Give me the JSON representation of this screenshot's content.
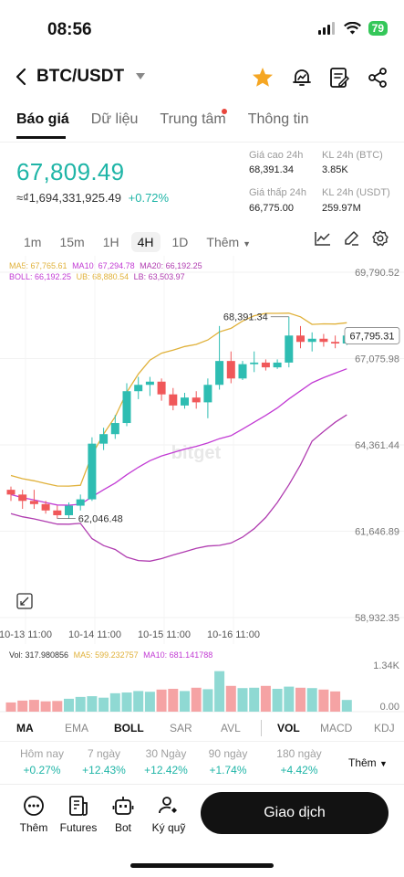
{
  "status": {
    "time": "08:56",
    "battery": "79"
  },
  "header": {
    "title": "BTC/USDT"
  },
  "tabs": [
    {
      "label": "Báo giá",
      "active": true
    },
    {
      "label": "Dữ liệu"
    },
    {
      "label": "Trung tâm"
    },
    {
      "label": "Thông tin"
    }
  ],
  "ticker": {
    "price": "67,809.49",
    "fiat": "≈₫1,694,331,925.49",
    "change": "+0.72%",
    "stats": [
      {
        "label": "Giá cao 24h",
        "value": "68,391.34"
      },
      {
        "label": "KL 24h (BTC)",
        "value": "3.85K"
      },
      {
        "label": "Giá thấp 24h",
        "value": "66,775.00"
      },
      {
        "label": "KL 24h (USDT)",
        "value": "259.97M"
      }
    ]
  },
  "intervals": [
    "1m",
    "15m",
    "1H",
    "4H",
    "1D",
    "Thêm"
  ],
  "chart_legend": {
    "ma": [
      {
        "text": "MA5: 67,765.61",
        "color": "#e0b13a"
      },
      {
        "text": "MA10: 67,294.78",
        "color": "#c23bd4"
      },
      {
        "text": "MA20: 66,192.25",
        "color": "#b03cb0"
      }
    ],
    "boll": [
      {
        "text": "BOLL: 66,192.25",
        "color": "#c23bd4"
      },
      {
        "text": "UB: 68,880.54",
        "color": "#e0b13a"
      },
      {
        "text": "LB: 63,503.97",
        "color": "#b03cb0"
      }
    ]
  },
  "chart_data": {
    "type": "candlestick",
    "y_ticks": [
      "69,790.52",
      "67,075.98",
      "64,361.44",
      "61,646.89",
      "58,932.35"
    ],
    "x_labels": [
      "10-13 11:00",
      "10-14 11:00",
      "10-15 11:00",
      "10-16 11:00"
    ],
    "last_price": "67,795.31",
    "high_marker": "68,391.34",
    "low_marker": "62,046.48",
    "candles": [
      {
        "o": 62950,
        "h": 63050,
        "l": 62600,
        "c": 62800
      },
      {
        "o": 62800,
        "h": 62950,
        "l": 62350,
        "c": 62600
      },
      {
        "o": 62600,
        "h": 62950,
        "l": 62350,
        "c": 62500
      },
      {
        "o": 62500,
        "h": 62600,
        "l": 62200,
        "c": 62300
      },
      {
        "o": 62300,
        "h": 62450,
        "l": 62046,
        "c": 62150
      },
      {
        "o": 62150,
        "h": 62550,
        "l": 62050,
        "c": 62450
      },
      {
        "o": 62450,
        "h": 62800,
        "l": 62300,
        "c": 62650
      },
      {
        "o": 62650,
        "h": 64600,
        "l": 62600,
        "c": 64400
      },
      {
        "o": 64400,
        "h": 64900,
        "l": 64200,
        "c": 64700
      },
      {
        "o": 64700,
        "h": 65300,
        "l": 64550,
        "c": 65050
      },
      {
        "o": 65050,
        "h": 66300,
        "l": 64950,
        "c": 66050
      },
      {
        "o": 66050,
        "h": 66500,
        "l": 65800,
        "c": 66250
      },
      {
        "o": 66250,
        "h": 66500,
        "l": 65900,
        "c": 66350
      },
      {
        "o": 66350,
        "h": 66450,
        "l": 65750,
        "c": 65950
      },
      {
        "o": 65950,
        "h": 66150,
        "l": 65450,
        "c": 65600
      },
      {
        "o": 65600,
        "h": 66000,
        "l": 65500,
        "c": 65850
      },
      {
        "o": 65850,
        "h": 66050,
        "l": 65500,
        "c": 65700
      },
      {
        "o": 65700,
        "h": 66450,
        "l": 65200,
        "c": 66250
      },
      {
        "o": 66250,
        "h": 68100,
        "l": 66100,
        "c": 67000
      },
      {
        "o": 67000,
        "h": 67300,
        "l": 66300,
        "c": 66450
      },
      {
        "o": 66450,
        "h": 67000,
        "l": 66400,
        "c": 66900
      },
      {
        "o": 66900,
        "h": 67300,
        "l": 66650,
        "c": 66950
      },
      {
        "o": 66950,
        "h": 67050,
        "l": 66700,
        "c": 66800
      },
      {
        "o": 66800,
        "h": 67050,
        "l": 66750,
        "c": 66950
      },
      {
        "o": 66950,
        "h": 68391,
        "l": 66800,
        "c": 67800
      },
      {
        "o": 67800,
        "h": 68100,
        "l": 67400,
        "c": 67600
      },
      {
        "o": 67600,
        "h": 67900,
        "l": 67300,
        "c": 67700
      },
      {
        "o": 67700,
        "h": 67850,
        "l": 67450,
        "c": 67600
      },
      {
        "o": 67600,
        "h": 67800,
        "l": 67400,
        "c": 67550
      },
      {
        "o": 67550,
        "h": 67900,
        "l": 67500,
        "c": 67800
      }
    ]
  },
  "volume": {
    "legend": {
      "vol": "Vol: 317.980856",
      "ma5": "MA5: 599.232757",
      "ma10": "MA10: 681.141788"
    },
    "y_ticks": [
      "1.34K",
      "0.00"
    ],
    "bars": [
      250,
      300,
      320,
      280,
      290,
      350,
      400,
      420,
      380,
      500,
      520,
      560,
      540,
      600,
      620,
      560,
      650,
      610,
      1100,
      700,
      640,
      650,
      700,
      620,
      680,
      650,
      640,
      600,
      550,
      318
    ]
  },
  "indicators": [
    {
      "label": "MA",
      "active": true
    },
    {
      "label": "EMA"
    },
    {
      "label": "BOLL",
      "active": true
    },
    {
      "label": "SAR"
    },
    {
      "label": "AVL"
    },
    {
      "label": "VOL",
      "active": true
    },
    {
      "label": "MACD"
    },
    {
      "label": "KDJ"
    }
  ],
  "performance": [
    {
      "label": "Hôm nay",
      "value": "+0.27%"
    },
    {
      "label": "7 ngày",
      "value": "+12.43%"
    },
    {
      "label": "30 Ngày",
      "value": "+12.42%"
    },
    {
      "label": "90 ngày",
      "value": "+1.74%"
    },
    {
      "label": "180 ngày",
      "value": "+4.42%"
    }
  ],
  "performance_more": "Thêm",
  "bottom_nav": [
    {
      "label": "Thêm",
      "icon": "more-dots-icon"
    },
    {
      "label": "Futures",
      "icon": "futures-icon"
    },
    {
      "label": "Bot",
      "icon": "bot-icon"
    },
    {
      "label": "Ký quỹ",
      "icon": "margin-icon"
    }
  ],
  "trade_button": "Giao dịch",
  "colors": {
    "up": "#2ebdb2",
    "down": "#f0585a",
    "accent": "#1fb5a7",
    "favorite": "#f5a623"
  }
}
